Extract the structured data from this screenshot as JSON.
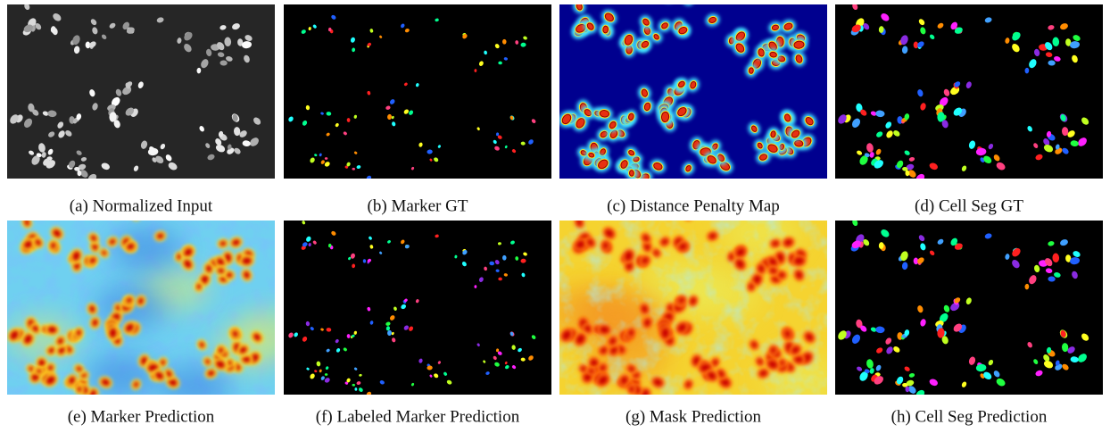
{
  "figure": {
    "panels": [
      {
        "caption": "(a) Normalized Input"
      },
      {
        "caption": "(b) Marker GT"
      },
      {
        "caption": "(c) Distance Penalty Map"
      },
      {
        "caption": "(d) Cell Seg GT"
      },
      {
        "caption": "(e) Marker Prediction"
      },
      {
        "caption": "(f) Labeled Marker Prediction"
      },
      {
        "caption": "(g) Mask Prediction"
      },
      {
        "caption": "(h) Cell Seg Prediction"
      }
    ]
  }
}
